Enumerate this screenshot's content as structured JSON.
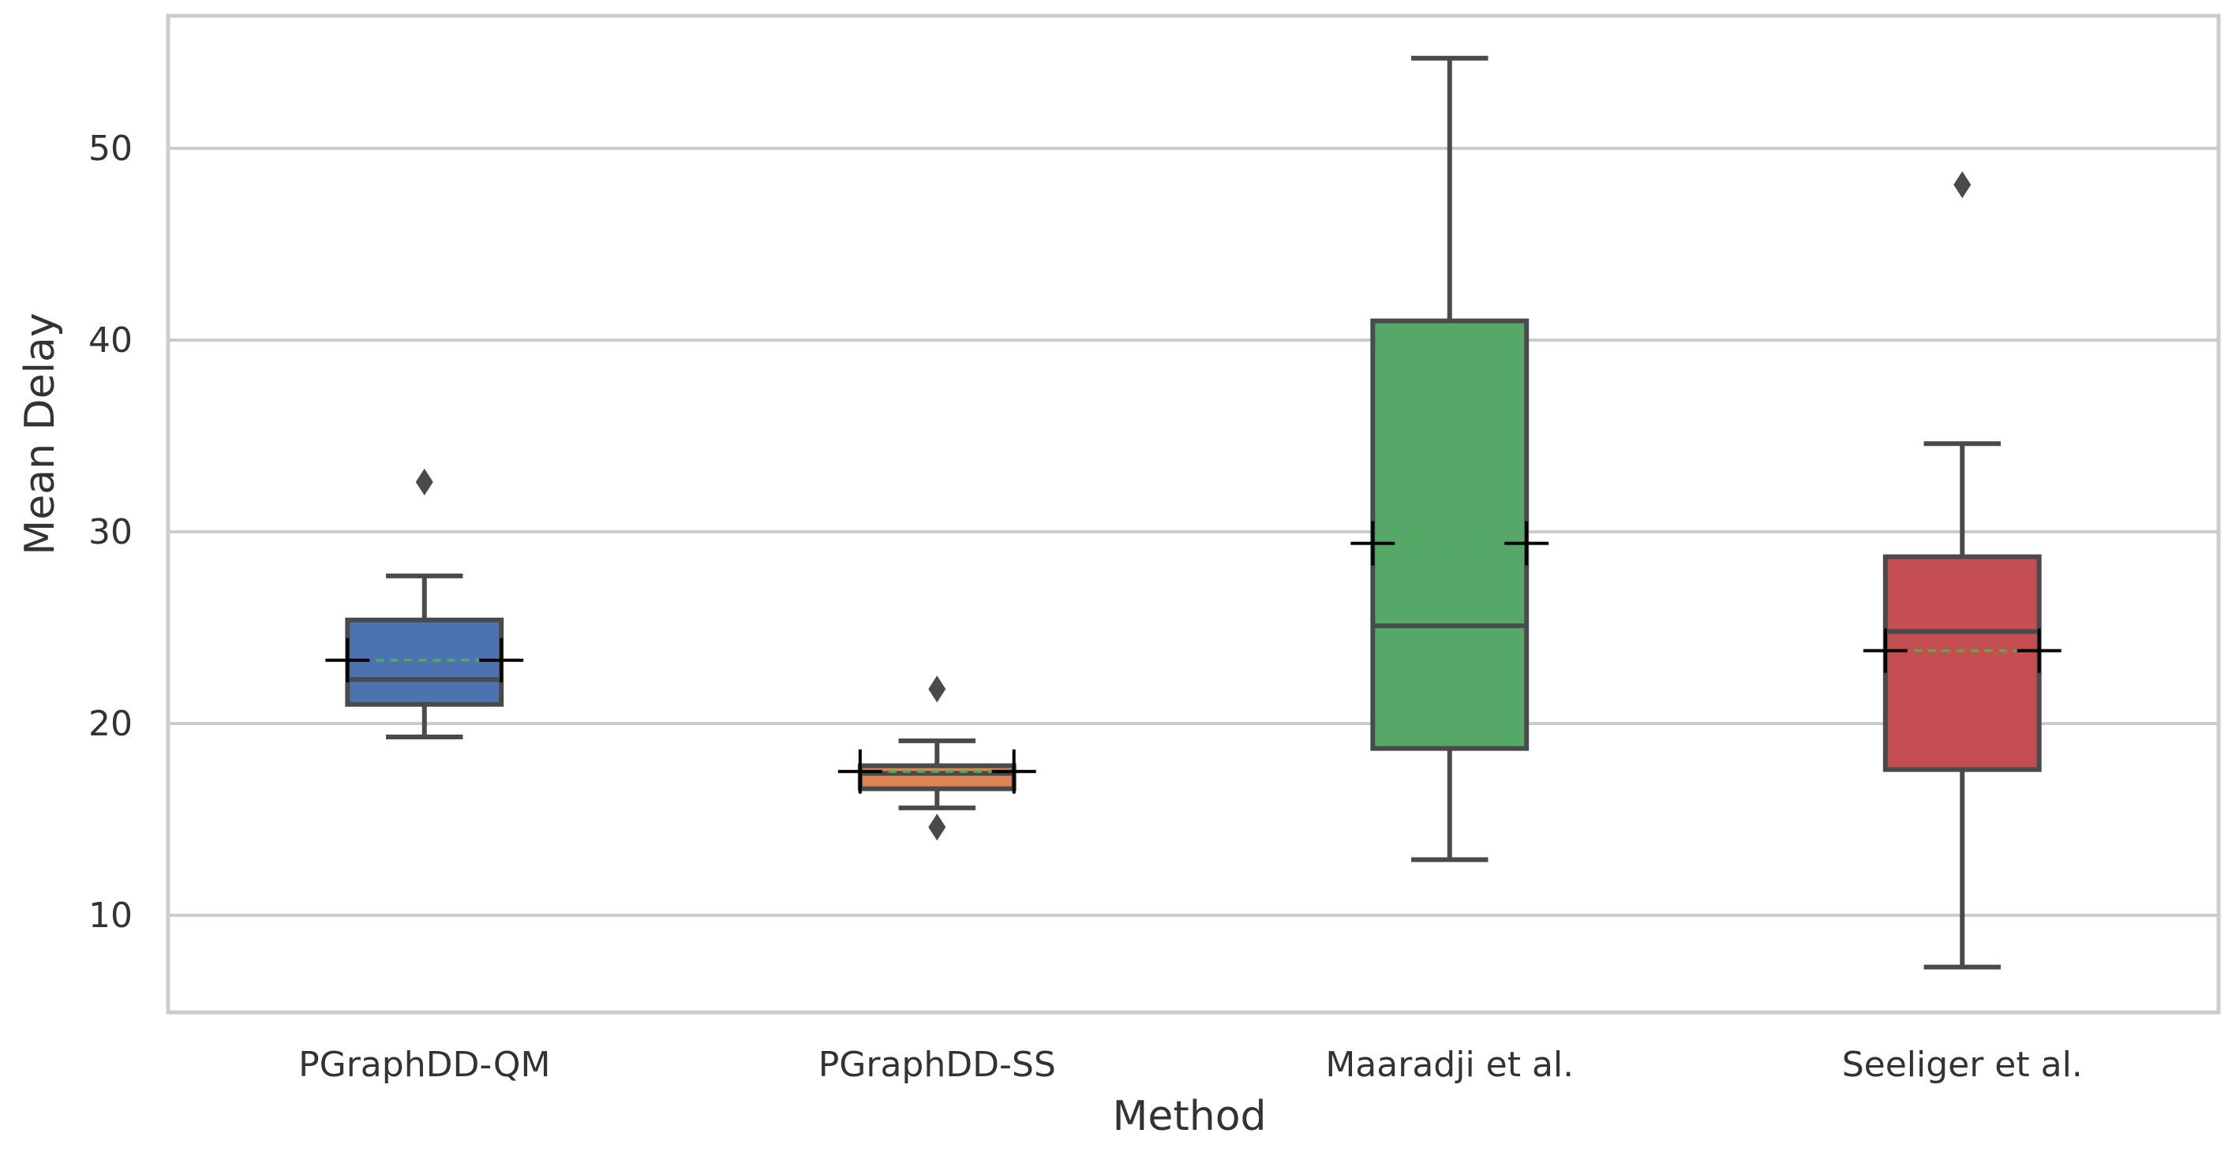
{
  "chart_data": {
    "type": "box",
    "title": "",
    "xlabel": "Method",
    "ylabel": "Mean Delay",
    "ylim": [
      5,
      57
    ],
    "yticks": [
      10,
      20,
      30,
      40,
      50
    ],
    "grid": true,
    "categories": [
      "PGraphDD-QM",
      "PGraphDD-SS",
      "Maaradji et al.",
      "Seeliger et al."
    ],
    "boxes": [
      {
        "name": "PGraphDD-QM",
        "color": "#4c72b0",
        "whisker_low": 19.3,
        "q1": 21.0,
        "median": 22.3,
        "q3": 25.4,
        "whisker_high": 27.7,
        "mean": 23.3,
        "outliers": [
          32.6
        ]
      },
      {
        "name": "PGraphDD-SS",
        "color": "#dd8452",
        "whisker_low": 15.6,
        "q1": 16.6,
        "median": 17.4,
        "q3": 17.8,
        "whisker_high": 19.1,
        "mean": 17.5,
        "outliers": [
          14.6,
          21.8
        ]
      },
      {
        "name": "Maaradji et al.",
        "color": "#55a868",
        "whisker_low": 12.9,
        "q1": 18.7,
        "median": 25.1,
        "q3": 41.0,
        "whisker_high": 54.7,
        "mean": 29.4,
        "outliers": []
      },
      {
        "name": "Seeliger et al.",
        "color": "#c44e52",
        "whisker_low": 7.3,
        "q1": 17.6,
        "median": 24.8,
        "q3": 28.7,
        "whisker_high": 34.6,
        "mean": 23.8,
        "outliers": [
          48.1
        ]
      }
    ]
  }
}
